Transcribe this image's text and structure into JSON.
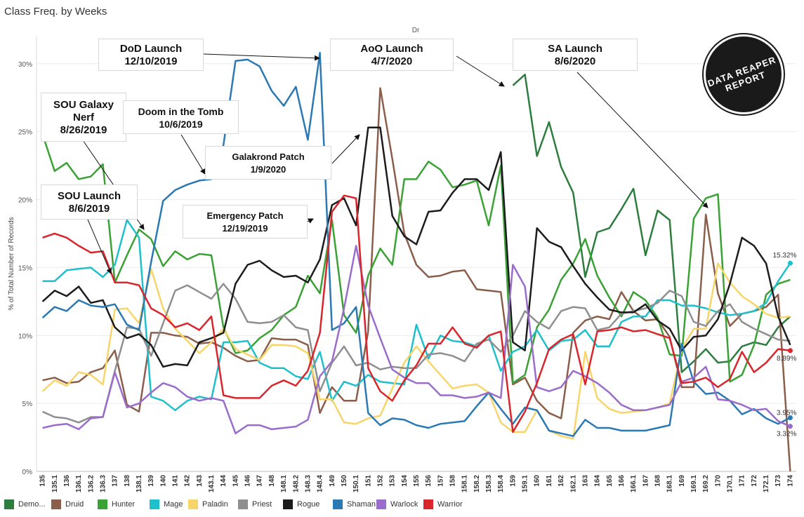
{
  "header": {
    "title": "Class Freq. by Weeks",
    "column_label": "Dr"
  },
  "chart_data": {
    "type": "line",
    "ylabel": "% of Total Number of Records",
    "ylim": [
      0,
      32
    ],
    "yticks": [
      "0%",
      "5%",
      "10%",
      "15%",
      "20%",
      "25%",
      "30%"
    ],
    "grid": "horizontal",
    "legend_position": "bottom",
    "categories": [
      "135",
      "135.1",
      "136",
      "136.1",
      "136.2",
      "136.3",
      "137",
      "138",
      "138.1",
      "139",
      "140",
      "141",
      "142",
      "143",
      "143.1",
      "144",
      "145",
      "146",
      "147",
      "148",
      "148.1",
      "148.2",
      "148.3",
      "148.4",
      "149",
      "150",
      "150.1",
      "151",
      "152",
      "153",
      "154",
      "155",
      "156",
      "157",
      "158",
      "158.1",
      "158.2",
      "158.3",
      "158.4",
      "159",
      "159.1",
      "160",
      "161",
      "162",
      "162.1",
      "163",
      "164",
      "165",
      "166",
      "166.1",
      "167",
      "168",
      "168.1",
      "169",
      "169.1",
      "169.2",
      "170",
      "170.1",
      "171",
      "172",
      "172.1",
      "173",
      "174"
    ],
    "series": [
      {
        "name": "Demo...",
        "color": "#2d7d3f",
        "values": [
          null,
          null,
          null,
          null,
          null,
          null,
          null,
          null,
          null,
          null,
          null,
          null,
          null,
          null,
          null,
          null,
          null,
          null,
          null,
          null,
          null,
          null,
          null,
          null,
          null,
          null,
          null,
          null,
          null,
          null,
          null,
          null,
          null,
          null,
          null,
          null,
          null,
          null,
          null,
          28.4,
          29.2,
          23.2,
          25.7,
          22.4,
          20.5,
          14.3,
          17.6,
          17.9,
          19.3,
          20.8,
          15.9,
          19.2,
          18.5,
          7.3,
          8.1,
          9.0,
          8.0,
          8.1,
          9.2,
          9.5,
          9.3,
          10.6,
          11.4
        ]
      },
      {
        "name": "Druid",
        "color": "#8b5e4c",
        "values": [
          6.7,
          6.9,
          6.5,
          6.6,
          7.3,
          7.6,
          8.9,
          4.9,
          4.4,
          10.2,
          10.2,
          10.0,
          9.9,
          9.4,
          9.5,
          9.1,
          8.5,
          8.1,
          8.2,
          9.8,
          9.7,
          9.7,
          9.3,
          4.3,
          6.2,
          5.2,
          5.2,
          10.3,
          28.2,
          23.0,
          17.5,
          15.2,
          14.3,
          14.4,
          14.7,
          14.8,
          13.4,
          13.3,
          13.2,
          6.4,
          6.9,
          5.2,
          4.3,
          3.9,
          10.2,
          11.1,
          11.4,
          11.2,
          13.2,
          11.8,
          11.1,
          11.2,
          9.9,
          6.2,
          6.2,
          18.9,
          13.1,
          10.7,
          11.6,
          11.8,
          12.1,
          13.0,
          0
        ]
      },
      {
        "name": "Hunter",
        "color": "#3aa135",
        "values": [
          24.8,
          22.1,
          22.7,
          21.5,
          21.7,
          22.6,
          13.9,
          15.9,
          17.8,
          17.1,
          15.1,
          16.2,
          15.6,
          16.0,
          15.9,
          10.6,
          8.7,
          8.9,
          9.8,
          10.4,
          11.5,
          12.1,
          14.4,
          13.1,
          18.5,
          11.5,
          10.2,
          14.4,
          16.4,
          15.2,
          21.5,
          21.5,
          22.8,
          22.2,
          20.9,
          21.1,
          21.4,
          18.1,
          22.5,
          6.5,
          7.1,
          10.6,
          11.9,
          14.1,
          15.3,
          17.1,
          14.4,
          12.8,
          11.4,
          13.2,
          12.6,
          11.3,
          8.6,
          8.5,
          18.6,
          20.1,
          20.4,
          6.6,
          7.1,
          9.3,
          13.0,
          13.8,
          14.1
        ]
      },
      {
        "name": "Mage",
        "color": "#1ec0cc",
        "values": [
          14.0,
          14.0,
          14.8,
          14.9,
          15.0,
          14.3,
          15.2,
          18.5,
          17.2,
          5.5,
          5.2,
          4.5,
          5.2,
          5.5,
          5.3,
          9.5,
          9.5,
          9.6,
          8.0,
          7.6,
          7.6,
          7.0,
          6.8,
          8.8,
          5.2,
          6.6,
          6.3,
          7.1,
          6.6,
          6.5,
          6.4,
          10.8,
          8.3,
          10.0,
          9.6,
          9.5,
          9.2,
          10.0,
          7.4,
          8.8,
          9.2,
          10.4,
          8.9,
          9.6,
          9.7,
          10.4,
          9.2,
          9.2,
          11.0,
          11.4,
          11.4,
          12.6,
          12.6,
          12.2,
          12.2,
          12.0,
          11.7,
          11.5,
          11.6,
          11.8,
          12.4,
          14.0,
          15.32
        ]
      },
      {
        "name": "Paladin",
        "color": "#f7d56a",
        "values": [
          5.9,
          6.7,
          6.3,
          7.3,
          7.1,
          6.4,
          11.9,
          12.0,
          10.9,
          14.9,
          12.0,
          10.5,
          9.6,
          8.7,
          9.5,
          10.5,
          9.0,
          8.6,
          8.2,
          9.3,
          9.3,
          9.2,
          8.7,
          5.3,
          5.3,
          3.6,
          3.5,
          3.9,
          4.1,
          6.1,
          8.0,
          9.2,
          8.1,
          7.1,
          6.1,
          6.3,
          6.4,
          5.8,
          3.6,
          2.9,
          2.9,
          4.5,
          3.0,
          2.6,
          2.4,
          8.8,
          5.4,
          4.6,
          4.3,
          4.4,
          4.5,
          4.7,
          5.0,
          9.0,
          10.5,
          10.5,
          15.3,
          13.9,
          12.9,
          12.3,
          11.6,
          11.3,
          11.4
        ]
      },
      {
        "name": "Priest",
        "color": "#8f8f8f",
        "values": [
          4.4,
          4.0,
          3.9,
          3.6,
          4.0,
          4.0,
          7.4,
          10.6,
          10.5,
          8.5,
          10.9,
          13.3,
          13.7,
          13.2,
          12.7,
          13.8,
          12.7,
          11.0,
          10.9,
          11.0,
          11.5,
          10.6,
          10.4,
          5.9,
          8.0,
          9.2,
          7.8,
          8.0,
          7.5,
          7.7,
          7.6,
          7.6,
          8.6,
          8.7,
          8.5,
          8.1,
          9.4,
          9.7,
          8.8,
          10.0,
          11.8,
          11.0,
          10.5,
          11.8,
          12.1,
          12.0,
          10.4,
          10.6,
          11.6,
          11.8,
          12.0,
          12.4,
          13.3,
          12.9,
          11.0,
          10.7,
          11.8,
          12.3,
          11.0,
          10.5,
          10.1,
          9.7,
          9.6
        ]
      },
      {
        "name": "Rogue",
        "color": "#1c1c1c",
        "values": [
          12.5,
          13.3,
          12.9,
          13.6,
          12.4,
          12.6,
          10.6,
          9.8,
          10.1,
          9.3,
          7.7,
          7.9,
          7.8,
          9.5,
          9.8,
          10.2,
          13.8,
          15.2,
          15.5,
          14.8,
          14.3,
          14.4,
          13.9,
          15.6,
          19.6,
          20.1,
          18.1,
          25.3,
          25.3,
          18.8,
          17.3,
          16.7,
          19.1,
          19.2,
          20.5,
          21.5,
          21.5,
          20.7,
          23.5,
          9.5,
          8.9,
          17.9,
          16.9,
          16.5,
          15.1,
          13.8,
          12.8,
          11.9,
          11.7,
          11.7,
          12.3,
          11.1,
          10.5,
          8.9,
          9.9,
          10.0,
          11.2,
          13.8,
          17.2,
          16.6,
          15.3,
          11.4,
          9.3
        ]
      },
      {
        "name": "Shaman",
        "color": "#2a79b5",
        "values": [
          11.3,
          12.1,
          11.8,
          12.6,
          12.2,
          12.1,
          12.3,
          10.8,
          10.4,
          15.4,
          19.9,
          20.7,
          21.1,
          21.4,
          21.5,
          24.0,
          30.2,
          30.3,
          29.8,
          28.0,
          26.9,
          28.3,
          24.4,
          30.8,
          10.4,
          10.9,
          12.1,
          4.3,
          3.4,
          3.9,
          3.8,
          3.4,
          3.2,
          3.5,
          3.6,
          3.7,
          4.8,
          5.8,
          4.6,
          3.5,
          4.7,
          4.5,
          3.0,
          2.8,
          2.6,
          3.8,
          3.2,
          3.2,
          3.0,
          3.0,
          3.0,
          3.2,
          3.4,
          9.4,
          6.6,
          5.7,
          5.8,
          5.2,
          4.2,
          4.6,
          3.9,
          3.5,
          3.95
        ]
      },
      {
        "name": "Warlock",
        "color": "#9a6ccb",
        "values": [
          3.2,
          3.4,
          3.5,
          3.1,
          3.9,
          4.0,
          7.3,
          4.7,
          5.0,
          5.8,
          6.5,
          6.2,
          5.5,
          5.2,
          5.4,
          5.2,
          2.8,
          3.4,
          3.4,
          3.1,
          3.2,
          3.3,
          3.8,
          7.0,
          8.1,
          12.0,
          16.6,
          12.2,
          9.8,
          7.5,
          6.9,
          6.5,
          6.5,
          5.6,
          5.6,
          5.4,
          5.5,
          5.8,
          5.4,
          15.2,
          13.6,
          6.2,
          5.9,
          6.2,
          7.4,
          7.0,
          6.5,
          5.8,
          4.9,
          4.5,
          4.5,
          4.7,
          4.9,
          6.6,
          6.9,
          7.7,
          5.3,
          5.2,
          4.9,
          4.5,
          4.6,
          3.7,
          3.32
        ]
      },
      {
        "name": "Warrior",
        "color": "#d8262c",
        "values": [
          17.2,
          17.5,
          17.2,
          16.6,
          16.1,
          16.2,
          13.9,
          13.9,
          13.7,
          12.0,
          11.5,
          10.6,
          10.9,
          10.4,
          11.4,
          5.6,
          5.4,
          5.4,
          5.4,
          6.3,
          6.7,
          6.3,
          7.4,
          10.2,
          19.1,
          20.3,
          20.1,
          7.6,
          5.9,
          5.2,
          6.7,
          7.8,
          9.4,
          9.4,
          10.6,
          9.4,
          9.1,
          10.0,
          10.3,
          2.9,
          4.4,
          6.5,
          9.0,
          9.7,
          10.1,
          6.4,
          10.3,
          10.4,
          10.6,
          10.3,
          10.4,
          10.1,
          9.8,
          6.5,
          6.6,
          6.9,
          6.2,
          6.8,
          8.8,
          7.3,
          8.0,
          9.0,
          8.89
        ]
      }
    ],
    "end_labels": [
      "15.32%",
      "8.89%",
      "3.95%",
      "3.32%"
    ],
    "annotations": [
      {
        "id": "dod",
        "text": [
          "DoD Launch",
          "12/10/2019"
        ]
      },
      {
        "id": "aoo",
        "text": [
          "AoO Launch",
          "4/7/2020"
        ]
      },
      {
        "id": "sa",
        "text": [
          "SA Launch",
          "8/6/2020"
        ]
      },
      {
        "id": "sou-nerf",
        "text": [
          "SOU Galaxy",
          "Nerf",
          "8/26/2019"
        ]
      },
      {
        "id": "doom",
        "text": [
          "Doom in the Tomb",
          "10/6/2019"
        ]
      },
      {
        "id": "galakrond",
        "text": [
          "Galakrond Patch",
          "1/9/2020"
        ]
      },
      {
        "id": "sou",
        "text": [
          "SOU Launch",
          "8/6/2019"
        ]
      },
      {
        "id": "emergency",
        "text": [
          "Emergency Patch",
          "12/19/2019"
        ]
      }
    ]
  },
  "logo": {
    "text": "DATA REAPER REPORT"
  }
}
